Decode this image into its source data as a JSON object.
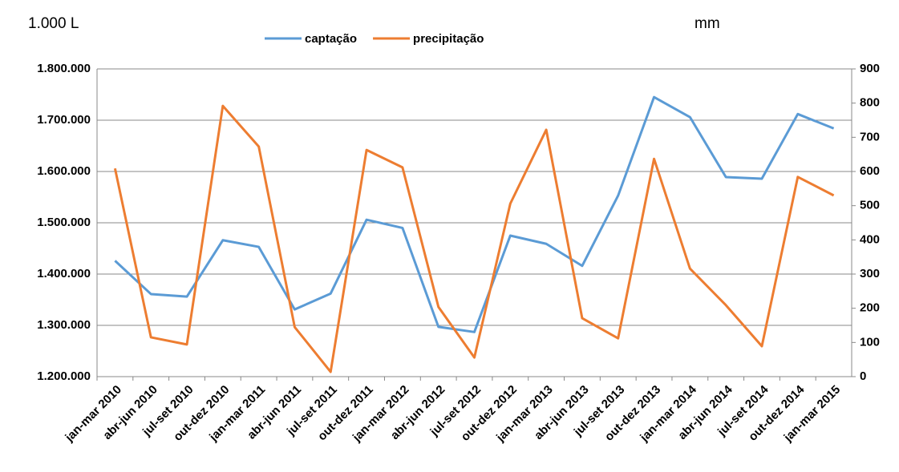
{
  "chart_data": {
    "type": "line",
    "y_unit_label": "1.000 L",
    "y2_unit_label": "mm",
    "categories": [
      "jan-mar 2010",
      "abr-jun 2010",
      "jul-set 2010",
      "out-dez 2010",
      "jan-mar 2011",
      "abr-jun 2011",
      "jul-set 2011",
      "out-dez 2011",
      "jan-mar 2012",
      "abr-jun 2012",
      "jul-set 2012",
      "out-dez 2012",
      "jan-mar 2013",
      "abr-jun 2013",
      "jul-set 2013",
      "out-dez 2013",
      "jan-mar 2014",
      "abr-jun 2014",
      "jul-set 2014",
      "out-dez 2014",
      "jan-mar 2015"
    ],
    "series": [
      {
        "name": "captação",
        "color": "#5b9bd5",
        "values": [
          1426000,
          1361000,
          1356000,
          1466000,
          1453000,
          1331000,
          1362000,
          1506000,
          1490000,
          1297000,
          1287000,
          1475000,
          1459000,
          1416000,
          1553000,
          1745000,
          1706000,
          1589000,
          1586000,
          1712000,
          1684000
        ]
      },
      {
        "name": "precipitação",
        "color": "#ed7d31",
        "axis": "y2",
        "values": [
          609,
          115,
          94,
          792,
          673,
          145,
          14,
          663,
          612,
          204,
          56,
          506,
          722,
          171,
          112,
          637,
          316,
          209,
          89,
          584,
          530
        ]
      }
    ],
    "ylim": [
      1200000,
      1800000
    ],
    "yticks": [
      {
        "value": 1200000,
        "label": "1.200.000"
      },
      {
        "value": 1300000,
        "label": "1.300.000"
      },
      {
        "value": 1400000,
        "label": "1.400.000"
      },
      {
        "value": 1500000,
        "label": "1.500.000"
      },
      {
        "value": 1600000,
        "label": "1.600.000"
      },
      {
        "value": 1700000,
        "label": "1.700.000"
      },
      {
        "value": 1800000,
        "label": "1.800.000"
      }
    ],
    "y2lim": [
      0,
      900
    ],
    "y2ticks": [
      0,
      100,
      200,
      300,
      400,
      500,
      600,
      700,
      800,
      900
    ],
    "grid": true,
    "legend": "top"
  }
}
